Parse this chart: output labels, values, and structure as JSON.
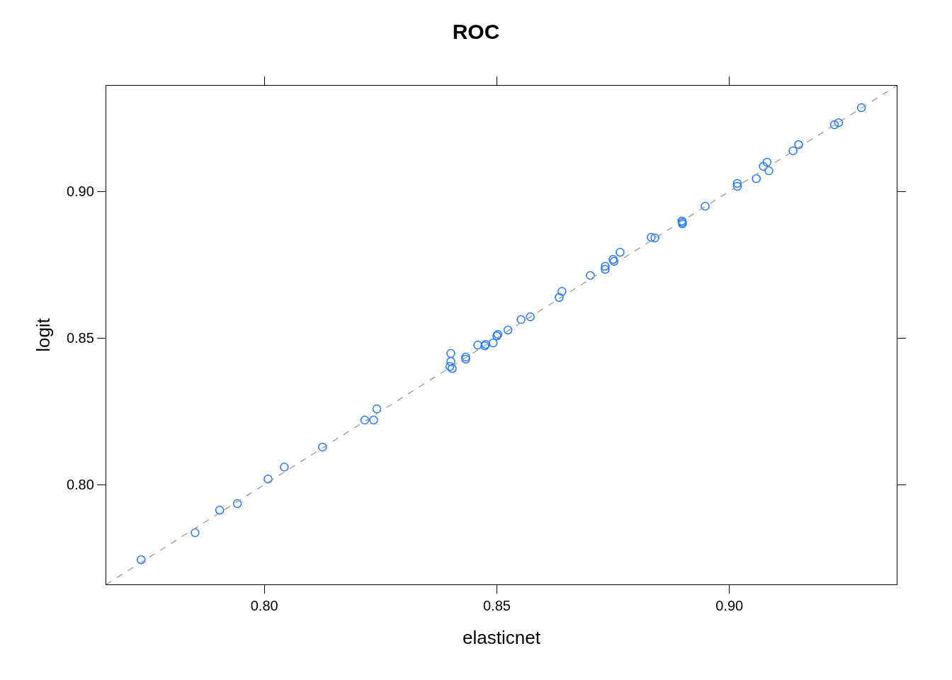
{
  "chart_data": {
    "type": "scatter",
    "title": "ROC",
    "xlabel": "elasticnet",
    "ylabel": "logit",
    "x": [
      0.7735,
      0.7851,
      0.7904,
      0.7942,
      0.8008,
      0.8043,
      0.8125,
      0.8216,
      0.8235,
      0.8242,
      0.8401,
      0.8401,
      0.8399,
      0.8404,
      0.8433,
      0.8433,
      0.8459,
      0.8476,
      0.8474,
      0.8492,
      0.85,
      0.8502,
      0.8524,
      0.8552,
      0.8572,
      0.8634,
      0.864,
      0.8701,
      0.8733,
      0.8733,
      0.875,
      0.8752,
      0.8765,
      0.8832,
      0.884,
      0.8898,
      0.8899,
      0.8899,
      0.8948,
      0.9017,
      0.9017,
      0.9058,
      0.9073,
      0.9081,
      0.9085,
      0.9137,
      0.9149,
      0.9226,
      0.9235,
      0.9284
    ],
    "series": [
      {
        "color": "#1f78ff",
        "marker": "circle",
        "values": [
          0.7744,
          0.7836,
          0.7913,
          0.7935,
          0.8019,
          0.806,
          0.8128,
          0.822,
          0.822,
          0.8258,
          0.8447,
          0.842,
          0.8403,
          0.8396,
          0.8435,
          0.8428,
          0.8476,
          0.8478,
          0.8473,
          0.8483,
          0.8507,
          0.8512,
          0.8527,
          0.8563,
          0.8572,
          0.8638,
          0.8659,
          0.8713,
          0.8744,
          0.8734,
          0.8768,
          0.8761,
          0.8792,
          0.8843,
          0.8841,
          0.8899,
          0.8894,
          0.8889,
          0.8949,
          0.9027,
          0.9017,
          0.9043,
          0.9085,
          0.9099,
          0.907,
          0.9138,
          0.9159,
          0.9227,
          0.9234,
          0.9285
        ]
      },
      {
        "type": "line",
        "color": "#999999",
        "line_style": "dashed",
        "marker": "none",
        "x": [
          0.766,
          0.936
        ],
        "values": [
          0.766,
          0.936
        ]
      }
    ],
    "xlim": [
      0.766,
      0.936
    ],
    "ylim": [
      0.766,
      0.936
    ],
    "xticks": [
      {
        "value": 0.8,
        "label": "0.80"
      },
      {
        "value": 0.85,
        "label": "0.85"
      },
      {
        "value": 0.9,
        "label": "0.90"
      }
    ],
    "yticks": [
      {
        "value": 0.8,
        "label": "0.80"
      },
      {
        "value": 0.85,
        "label": "0.85"
      },
      {
        "value": 0.9,
        "label": "0.90"
      }
    ],
    "tick_labels": [
      "x",
      "y"
    ]
  }
}
